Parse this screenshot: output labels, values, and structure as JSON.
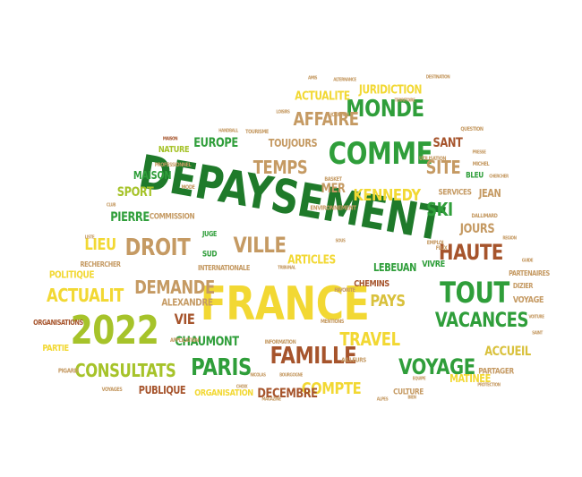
{
  "colors": {
    "yellow": "#f2d833",
    "lime": "#a6c32a",
    "green": "#2f9e3a",
    "darkgreen": "#1f7a2a",
    "tan": "#c59a63",
    "brown": "#a6542c",
    "gold": "#d9c13c"
  },
  "words": [
    {
      "text": "DEPAYSEMENT",
      "color": "darkgreen"
    },
    {
      "text": "FRANCE",
      "color": "yellow"
    },
    {
      "text": "2022",
      "color": "lime"
    },
    {
      "text": "COMME",
      "color": "green"
    },
    {
      "text": "MONDE",
      "color": "green"
    },
    {
      "text": "TOUT",
      "color": "green"
    },
    {
      "text": "VACANCES",
      "color": "green"
    },
    {
      "text": "VOYAGE",
      "color": "green"
    },
    {
      "text": "FAMILLE",
      "color": "brown"
    },
    {
      "text": "PARIS",
      "color": "green"
    },
    {
      "text": "CONSULTATS",
      "color": "lime"
    },
    {
      "text": "DROIT",
      "color": "tan"
    },
    {
      "text": "VILLE",
      "color": "tan"
    },
    {
      "text": "HAUTE",
      "color": "brown"
    },
    {
      "text": "ACTUALIT",
      "color": "yellow"
    },
    {
      "text": "DEMANDE",
      "color": "tan"
    },
    {
      "text": "TRAVEL",
      "color": "yellow"
    },
    {
      "text": "COMPTE",
      "color": "yellow"
    },
    {
      "text": "PAYS",
      "color": "gold"
    },
    {
      "text": "TEMPS",
      "color": "tan"
    },
    {
      "text": "SITE",
      "color": "tan"
    },
    {
      "text": "KENNEDY",
      "color": "yellow"
    },
    {
      "text": "SKI",
      "color": "green"
    },
    {
      "text": "AFFAIRE",
      "color": "tan"
    },
    {
      "text": "JURIDICTION",
      "color": "yellow"
    },
    {
      "text": "ACTUALITE",
      "color": "yellow"
    },
    {
      "text": "TOUJOURS",
      "color": "tan"
    },
    {
      "text": "EUROPE",
      "color": "green"
    },
    {
      "text": "SANT",
      "color": "brown"
    },
    {
      "text": "CHAUMONT",
      "color": "green"
    },
    {
      "text": "DECEMBRE",
      "color": "brown"
    },
    {
      "text": "VIE",
      "color": "brown"
    },
    {
      "text": "LIEU",
      "color": "yellow"
    },
    {
      "text": "JOURS",
      "color": "tan"
    },
    {
      "text": "ACCUEIL",
      "color": "gold"
    },
    {
      "text": "ARTICLES",
      "color": "yellow"
    },
    {
      "text": "LEBEUAN",
      "color": "green"
    },
    {
      "text": "MER",
      "color": "tan"
    },
    {
      "text": "PIERRE",
      "color": "green"
    },
    {
      "text": "SPORT",
      "color": "lime"
    },
    {
      "text": "MAISON",
      "color": "green"
    },
    {
      "text": "NATURE",
      "color": "lime"
    },
    {
      "text": "POLITIQUE",
      "color": "yellow"
    },
    {
      "text": "PUBLIQUE",
      "color": "brown"
    },
    {
      "text": "ORGANISATION",
      "color": "yellow"
    },
    {
      "text": "MATINEE",
      "color": "yellow"
    },
    {
      "text": "CULTURE",
      "color": "tan"
    },
    {
      "text": "PARTIE",
      "color": "yellow"
    },
    {
      "text": "ALEXANDRE",
      "color": "tan"
    },
    {
      "text": "CHEMINS",
      "color": "brown"
    },
    {
      "text": "VIVRE",
      "color": "green"
    },
    {
      "text": "JEAN",
      "color": "tan"
    },
    {
      "text": "SERVICES",
      "color": "tan"
    },
    {
      "text": "VOYAGE",
      "color": "tan"
    },
    {
      "text": "PARTAGER",
      "color": "tan"
    },
    {
      "text": "PARTENAIRES",
      "color": "tan"
    },
    {
      "text": "ORGANISATIONS",
      "color": "brown"
    },
    {
      "text": "COMMISSION",
      "color": "tan"
    },
    {
      "text": "INTERNATIONALE",
      "color": "tan"
    },
    {
      "text": "RECHERCHER",
      "color": "tan"
    },
    {
      "text": "ENVIRONNEMENT",
      "color": "tan"
    },
    {
      "text": "DIZIER",
      "color": "tan"
    },
    {
      "text": "BLEU",
      "color": "green"
    },
    {
      "text": "JUGE",
      "color": "green"
    },
    {
      "text": "SUD",
      "color": "green"
    },
    {
      "text": "PIGARD",
      "color": "tan"
    },
    {
      "text": "AILLEURS",
      "color": "tan"
    },
    {
      "text": "MENTIONS",
      "color": "tan"
    },
    {
      "text": "APPLICATION",
      "color": "tan"
    },
    {
      "text": "FAVORITE",
      "color": "tan"
    },
    {
      "text": "VOYAGES",
      "color": "tan"
    },
    {
      "text": "QUESTION",
      "color": "tan"
    },
    {
      "text": "JOURNAL",
      "color": "tan"
    },
    {
      "text": "UTILISATION",
      "color": "tan"
    },
    {
      "text": "DALLIMARD",
      "color": "tan"
    },
    {
      "text": "FLUX",
      "color": "tan"
    },
    {
      "text": "INFORMATION",
      "color": "tan"
    },
    {
      "text": "MICHEL",
      "color": "tan"
    },
    {
      "text": "PRESSE",
      "color": "tan"
    },
    {
      "text": "PROFESSIONNEL",
      "color": "tan"
    },
    {
      "text": "TOURISME",
      "color": "tan"
    },
    {
      "text": "BASKET",
      "color": "tan"
    },
    {
      "text": "PROTECTION",
      "color": "tan"
    },
    {
      "text": "EMPLOI",
      "color": "tan"
    },
    {
      "text": "ALPES",
      "color": "tan"
    },
    {
      "text": "GUIDE",
      "color": "tan"
    },
    {
      "text": "SOUS",
      "color": "tan"
    },
    {
      "text": "AMIS",
      "color": "tan"
    },
    {
      "text": "TERRITOIRE",
      "color": "tan"
    },
    {
      "text": "DESTINATION",
      "color": "tan"
    },
    {
      "text": "ALTERNANCE",
      "color": "tan"
    },
    {
      "text": "LOISIRS",
      "color": "tan"
    },
    {
      "text": "HANDBALL",
      "color": "tan"
    },
    {
      "text": "TRIBUNAL",
      "color": "tan"
    },
    {
      "text": "BOURGOGNE",
      "color": "tan"
    },
    {
      "text": "MODE",
      "color": "tan"
    },
    {
      "text": "MAISON",
      "color": "brown"
    },
    {
      "text": "CLUB",
      "color": "tan"
    },
    {
      "text": "VOITURE",
      "color": "tan"
    },
    {
      "text": "BIEN",
      "color": "tan"
    },
    {
      "text": "EQUIPE",
      "color": "tan"
    },
    {
      "text": "SAINT",
      "color": "tan"
    },
    {
      "text": "CHERCHER",
      "color": "tan"
    },
    {
      "text": "NICOLAS",
      "color": "tan"
    },
    {
      "text": "LISTE",
      "color": "tan"
    },
    {
      "text": "MAGAZINE",
      "color": "tan"
    },
    {
      "text": "REGION",
      "color": "tan"
    },
    {
      "text": "CHOIX",
      "color": "tan"
    }
  ]
}
